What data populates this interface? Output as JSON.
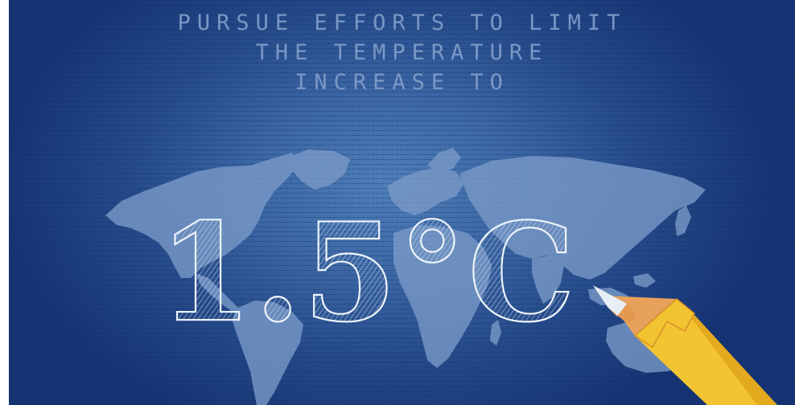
{
  "headline": {
    "line1": "PURSUE EFFORTS TO LIMIT",
    "line2": "THE TEMPERATURE",
    "line3": "INCREASE TO"
  },
  "target_value": "1.5°C",
  "icons": [
    "world-map-icon",
    "pencil-icon"
  ],
  "colors": {
    "background_center": "#4f7fb8",
    "background_edge": "#163473",
    "headline_text": "#7f9cc8",
    "map_land": "#7b9bc9",
    "sketch_stroke": "#e6eef8",
    "pencil_body": "#f2c431",
    "pencil_wood": "#e7a15a",
    "pencil_tip": "#dfe8f3"
  }
}
